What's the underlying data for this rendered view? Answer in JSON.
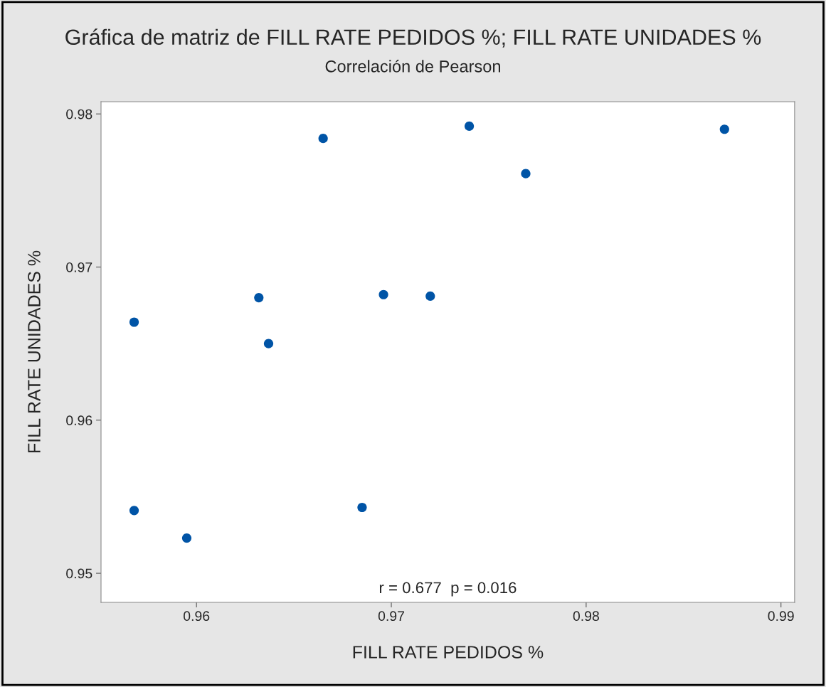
{
  "chart_data": {
    "type": "scatter",
    "title": "Gráfica de matriz de FILL RATE PEDIDOS %; FILL RATE UNIDADES %",
    "subtitle": "Correlación de Pearson",
    "xlabel": "FILL RATE PEDIDOS %",
    "ylabel": "FILL RATE UNIDADES %",
    "x": [
      0.9568,
      0.9568,
      0.9595,
      0.9632,
      0.9637,
      0.9665,
      0.9685,
      0.9696,
      0.972,
      0.974,
      0.9769,
      0.9871
    ],
    "series": [
      {
        "color": "#0054a6",
        "values": [
          0.9664,
          0.9541,
          0.9523,
          0.968,
          0.965,
          0.9784,
          0.9543,
          0.9682,
          0.9681,
          0.9792,
          0.9761,
          0.979
        ]
      }
    ],
    "xlim": [
      0.9551,
      0.9907
    ],
    "ylim": [
      0.9481,
      0.9808
    ],
    "xticks": [
      0.96,
      0.97,
      0.98,
      0.99
    ],
    "yticks": [
      0.95,
      0.96,
      0.97,
      0.98
    ],
    "marker": "circle",
    "grid": false,
    "annotations": [
      "r = 0.677  p = 0.016"
    ]
  }
}
